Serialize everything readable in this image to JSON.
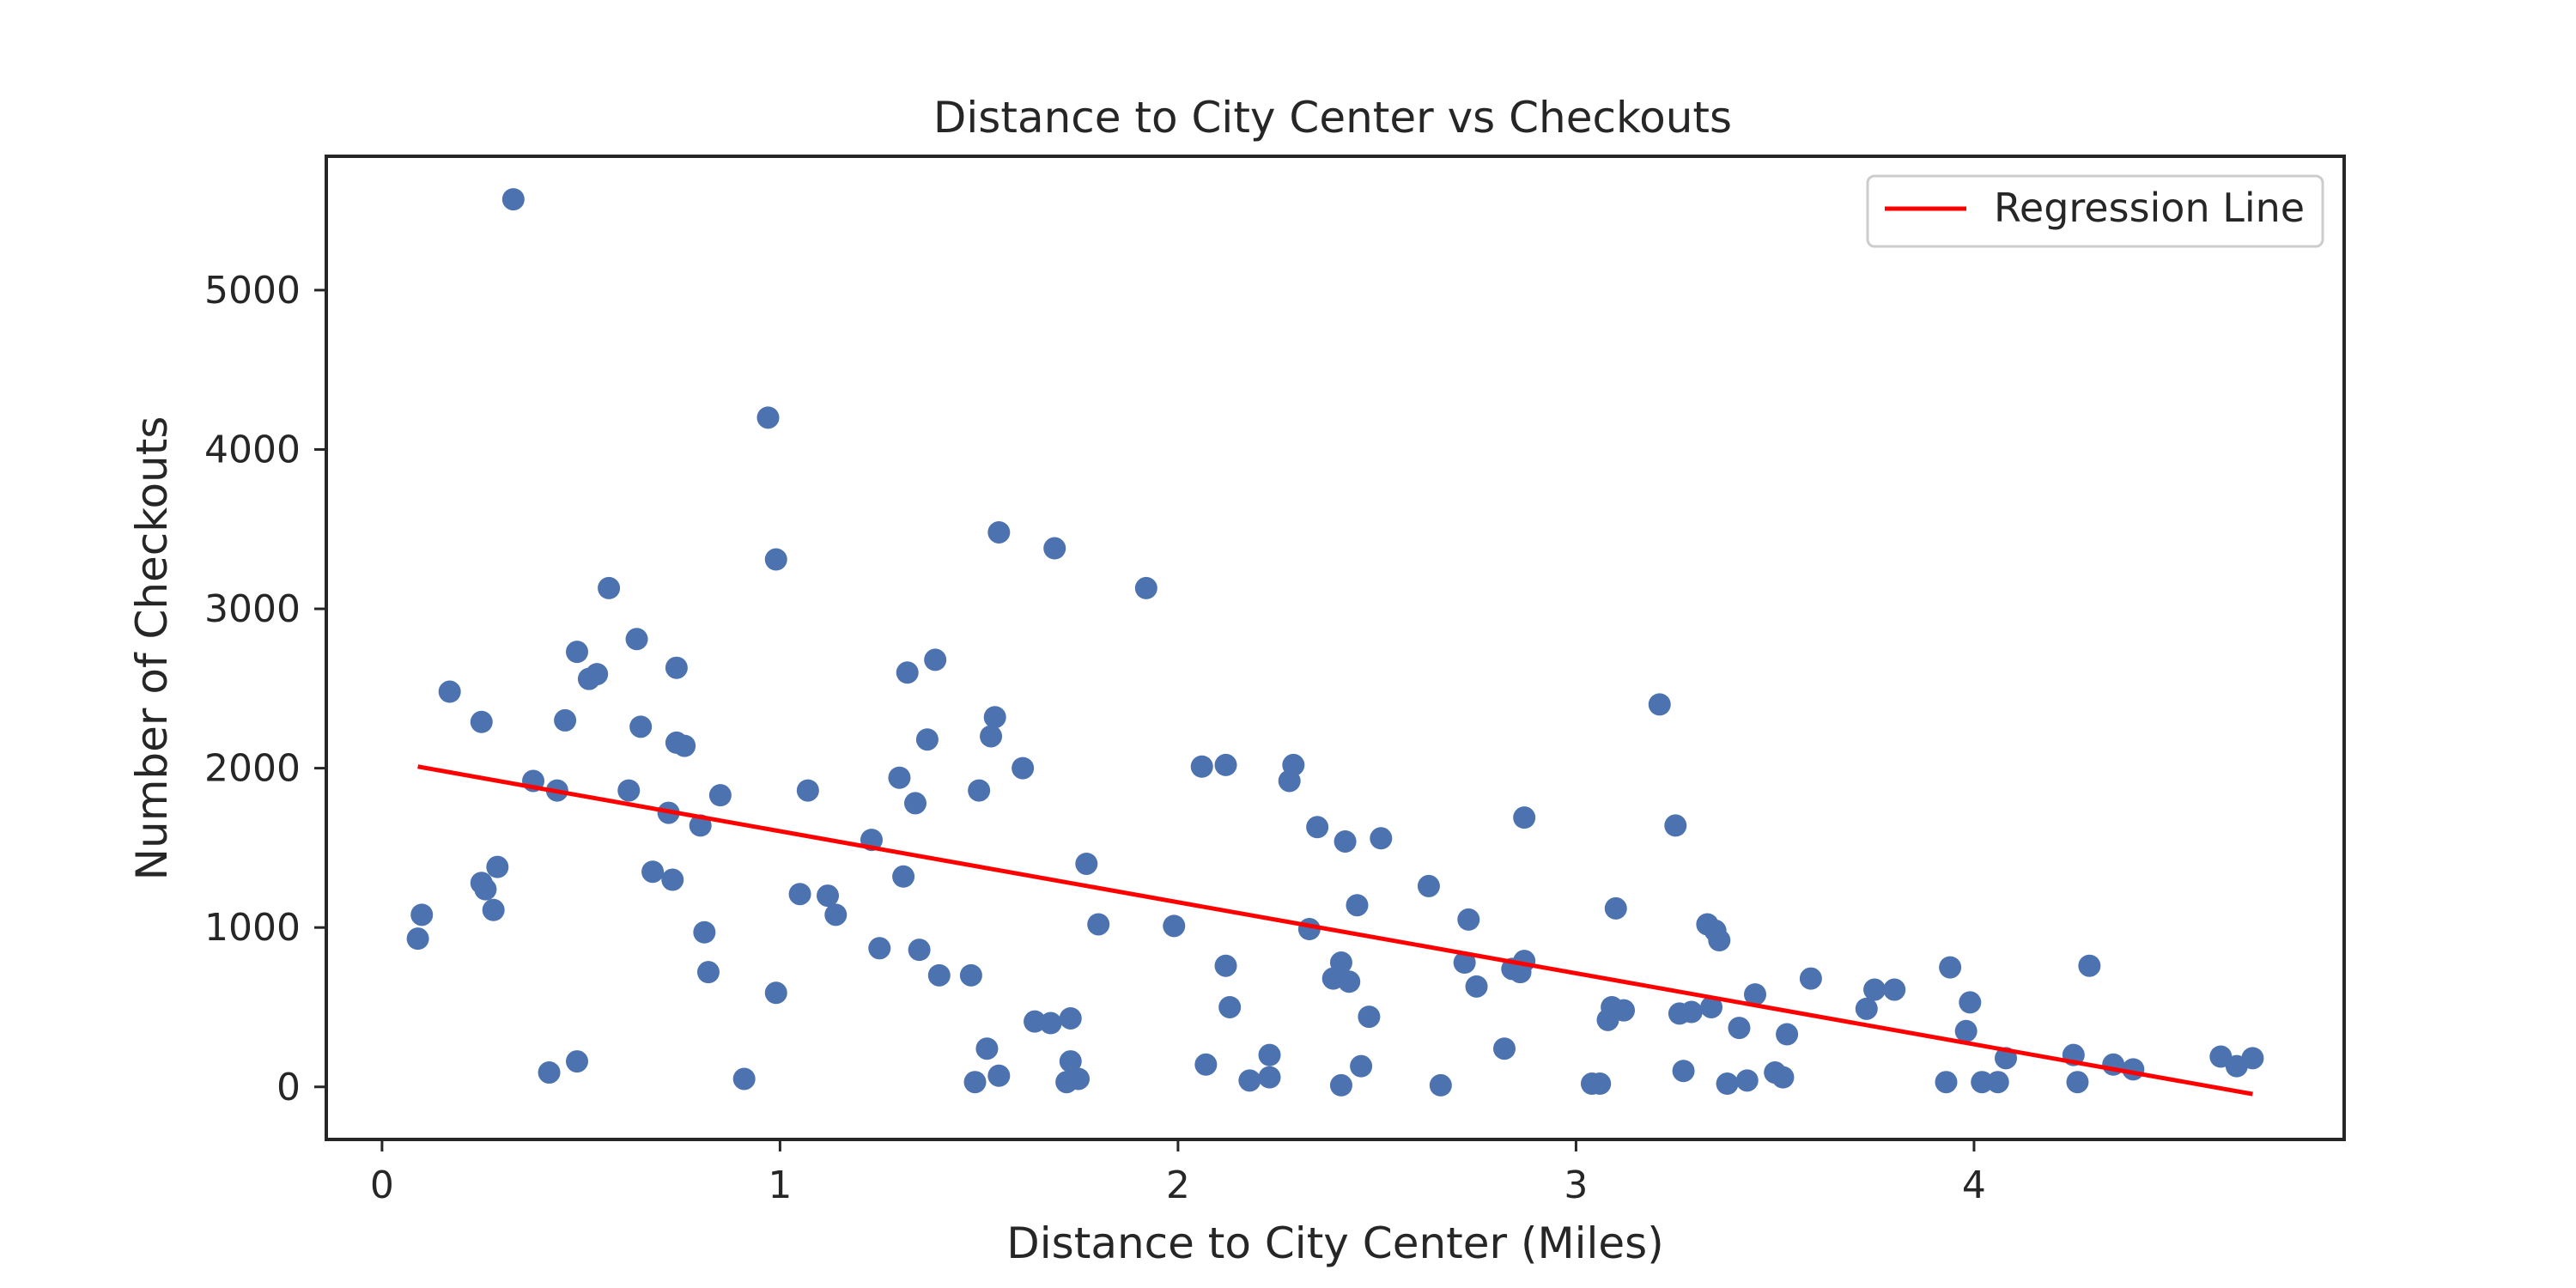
{
  "chart_data": {
    "type": "scatter",
    "title": "Distance to City Center vs Checkouts",
    "xlabel": "Distance to City Center (Miles)",
    "ylabel": "Number of Checkouts",
    "xlim": [
      -0.14,
      4.93
    ],
    "ylim": [
      -330,
      5840
    ],
    "xticks": [
      0,
      1,
      2,
      3,
      4
    ],
    "yticks": [
      0,
      1000,
      2000,
      3000,
      4000,
      5000
    ],
    "grid": false,
    "legend_position": "top-right",
    "point_color": "#4c72b0",
    "line_color": "#ff0000",
    "regression": {
      "name": "Regression Line",
      "x": [
        0.09,
        4.7
      ],
      "y": [
        2010,
        -45
      ]
    },
    "points": [
      [
        0.09,
        930
      ],
      [
        0.1,
        1080
      ],
      [
        0.17,
        2480
      ],
      [
        0.25,
        2290
      ],
      [
        0.25,
        1280
      ],
      [
        0.26,
        1240
      ],
      [
        0.28,
        1110
      ],
      [
        0.29,
        1380
      ],
      [
        0.33,
        5570
      ],
      [
        0.38,
        1920
      ],
      [
        0.42,
        90
      ],
      [
        0.44,
        1860
      ],
      [
        0.46,
        2300
      ],
      [
        0.49,
        2730
      ],
      [
        0.49,
        160
      ],
      [
        0.52,
        2560
      ],
      [
        0.54,
        2590
      ],
      [
        0.57,
        3130
      ],
      [
        0.62,
        1860
      ],
      [
        0.64,
        2810
      ],
      [
        0.65,
        2260
      ],
      [
        0.68,
        1350
      ],
      [
        0.72,
        1720
      ],
      [
        0.73,
        1300
      ],
      [
        0.74,
        2630
      ],
      [
        0.74,
        2160
      ],
      [
        0.76,
        2140
      ],
      [
        0.8,
        1640
      ],
      [
        0.81,
        970
      ],
      [
        0.82,
        720
      ],
      [
        0.85,
        1830
      ],
      [
        0.91,
        50
      ],
      [
        0.97,
        4200
      ],
      [
        0.99,
        3310
      ],
      [
        0.99,
        590
      ],
      [
        1.05,
        1210
      ],
      [
        1.07,
        1860
      ],
      [
        1.12,
        1200
      ],
      [
        1.14,
        1080
      ],
      [
        1.23,
        1550
      ],
      [
        1.25,
        870
      ],
      [
        1.3,
        1940
      ],
      [
        1.31,
        1320
      ],
      [
        1.32,
        2600
      ],
      [
        1.34,
        1780
      ],
      [
        1.35,
        860
      ],
      [
        1.37,
        2180
      ],
      [
        1.39,
        2680
      ],
      [
        1.4,
        700
      ],
      [
        1.48,
        700
      ],
      [
        1.49,
        30
      ],
      [
        1.5,
        1860
      ],
      [
        1.52,
        240
      ],
      [
        1.53,
        2200
      ],
      [
        1.54,
        2320
      ],
      [
        1.55,
        3480
      ],
      [
        1.55,
        70
      ],
      [
        1.61,
        2000
      ],
      [
        1.64,
        410
      ],
      [
        1.68,
        400
      ],
      [
        1.69,
        3380
      ],
      [
        1.72,
        30
      ],
      [
        1.73,
        430
      ],
      [
        1.73,
        160
      ],
      [
        1.75,
        50
      ],
      [
        1.77,
        1400
      ],
      [
        1.8,
        1020
      ],
      [
        1.92,
        3130
      ],
      [
        1.99,
        1010
      ],
      [
        2.06,
        2010
      ],
      [
        2.07,
        140
      ],
      [
        2.12,
        760
      ],
      [
        2.12,
        2020
      ],
      [
        2.13,
        500
      ],
      [
        2.18,
        40
      ],
      [
        2.23,
        200
      ],
      [
        2.23,
        60
      ],
      [
        2.28,
        1920
      ],
      [
        2.29,
        2020
      ],
      [
        2.33,
        990
      ],
      [
        2.35,
        1630
      ],
      [
        2.39,
        680
      ],
      [
        2.41,
        780
      ],
      [
        2.41,
        10
      ],
      [
        2.42,
        1540
      ],
      [
        2.43,
        660
      ],
      [
        2.45,
        1140
      ],
      [
        2.46,
        130
      ],
      [
        2.48,
        440
      ],
      [
        2.51,
        1560
      ],
      [
        2.63,
        1260
      ],
      [
        2.66,
        10
      ],
      [
        2.72,
        780
      ],
      [
        2.73,
        1050
      ],
      [
        2.75,
        630
      ],
      [
        2.82,
        240
      ],
      [
        2.84,
        740
      ],
      [
        2.86,
        720
      ],
      [
        2.87,
        790
      ],
      [
        2.87,
        1690
      ],
      [
        3.04,
        20
      ],
      [
        3.06,
        20
      ],
      [
        3.08,
        420
      ],
      [
        3.09,
        500
      ],
      [
        3.1,
        1120
      ],
      [
        3.12,
        480
      ],
      [
        3.21,
        2400
      ],
      [
        3.25,
        1640
      ],
      [
        3.26,
        460
      ],
      [
        3.27,
        100
      ],
      [
        3.29,
        470
      ],
      [
        3.33,
        1020
      ],
      [
        3.34,
        500
      ],
      [
        3.35,
        980
      ],
      [
        3.36,
        920
      ],
      [
        3.38,
        20
      ],
      [
        3.41,
        370
      ],
      [
        3.43,
        40
      ],
      [
        3.45,
        580
      ],
      [
        3.5,
        90
      ],
      [
        3.52,
        60
      ],
      [
        3.53,
        330
      ],
      [
        3.59,
        680
      ],
      [
        3.73,
        490
      ],
      [
        3.75,
        610
      ],
      [
        3.8,
        610
      ],
      [
        3.93,
        30
      ],
      [
        3.94,
        750
      ],
      [
        3.98,
        350
      ],
      [
        3.99,
        530
      ],
      [
        4.02,
        30
      ],
      [
        4.06,
        30
      ],
      [
        4.08,
        180
      ],
      [
        4.25,
        200
      ],
      [
        4.26,
        30
      ],
      [
        4.29,
        760
      ],
      [
        4.35,
        140
      ],
      [
        4.4,
        110
      ],
      [
        4.62,
        190
      ],
      [
        4.66,
        130
      ],
      [
        4.7,
        180
      ]
    ]
  }
}
